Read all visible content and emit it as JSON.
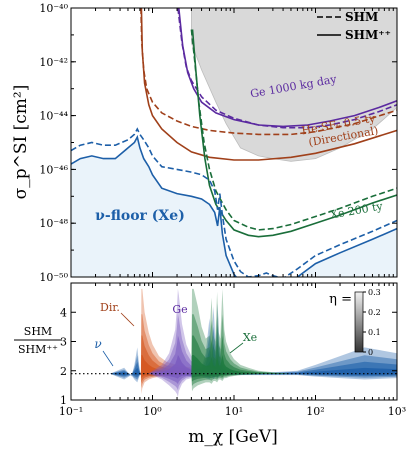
{
  "chart_data": [
    {
      "type": "line",
      "panel": "top",
      "x_label": "",
      "y_label": "σ_p^SI [cm²]",
      "x_scale": "log",
      "y_scale": "log",
      "xlim": [
        0.1,
        1000
      ],
      "ylim": [
        1e-50,
        1e-40
      ],
      "y_ticks": [
        {
          "exp": -50,
          "label": "10⁻⁵⁰"
        },
        {
          "exp": -48,
          "label": "10⁻⁴⁸"
        },
        {
          "exp": -46,
          "label": "10⁻⁴⁶"
        },
        {
          "exp": -44,
          "label": "10⁻⁴⁴"
        },
        {
          "exp": -42,
          "label": "10⁻⁴²"
        },
        {
          "exp": -40,
          "label": "10⁻⁴⁰"
        }
      ],
      "legend": [
        {
          "label": "SHM",
          "style": "dashed"
        },
        {
          "label": "SHM⁺⁺",
          "style": "solid"
        }
      ],
      "legend_position": "top-right",
      "excluded_region": {
        "color": "#d9d9d9",
        "x": [
          3.0,
          3.0,
          4.0,
          6.0,
          8.0,
          12.0,
          20.0,
          30.0,
          50.0,
          100.0,
          200.0,
          500.0,
          1000.0,
          1000.0
        ],
        "log_y": [
          -40,
          -41.3,
          -42.3,
          -43.5,
          -44.3,
          -45.2,
          -45.5,
          -45.6,
          -45.7,
          -45.6,
          -45.2,
          -44.5,
          -43.7,
          -40
        ]
      },
      "series": [
        {
          "key": "ge",
          "name": "Ge 1000 kg day",
          "color": "#5b2aa0",
          "shm_x": [
            2.05,
            2.3,
            2.6,
            3.0,
            4.0,
            6.0,
            10.0,
            20.0,
            40.0,
            80.0,
            150.0,
            300.0,
            600.0,
            1000.0
          ],
          "shm_log_y": [
            -40,
            -41.3,
            -42.2,
            -42.7,
            -43.3,
            -43.8,
            -44.1,
            -44.35,
            -44.45,
            -44.45,
            -44.35,
            -44.15,
            -43.85,
            -43.6
          ],
          "pp_x": [
            2.1,
            2.35,
            2.7,
            3.2,
            4.0,
            6.0,
            10.0,
            20.0,
            40.0,
            80.0,
            150.0,
            300.0,
            600.0,
            1000.0
          ],
          "pp_log_y": [
            -40,
            -41.4,
            -42.4,
            -43.0,
            -43.5,
            -43.9,
            -44.15,
            -44.35,
            -44.4,
            -44.35,
            -44.2,
            -44.0,
            -43.7,
            -43.45
          ]
        },
        {
          "key": "he",
          "name": "He:SF₆ 0.5 ty",
          "name_sub": "(Directional)",
          "color": "#a0401a",
          "shm_x": [
            0.72,
            0.74,
            0.78,
            0.85,
            1.0,
            1.3,
            2.0,
            3.0,
            5.0,
            10.0,
            20.0,
            50.0,
            100.0,
            300.0,
            1000.0
          ],
          "shm_log_y": [
            -40,
            -41.3,
            -42.3,
            -43.0,
            -43.5,
            -43.9,
            -44.2,
            -44.4,
            -44.55,
            -44.65,
            -44.7,
            -44.7,
            -44.6,
            -44.3,
            -43.8
          ],
          "pp_x": [
            0.73,
            0.75,
            0.8,
            0.9,
            1.0,
            1.3,
            2.0,
            3.0,
            5.0,
            10.0,
            20.0,
            50.0,
            100.0,
            300.0,
            1000.0
          ],
          "pp_log_y": [
            -40,
            -41.6,
            -42.8,
            -43.6,
            -44.0,
            -44.5,
            -45.0,
            -45.35,
            -45.55,
            -45.65,
            -45.65,
            -45.55,
            -45.4,
            -45.05,
            -44.55
          ]
        },
        {
          "key": "xe",
          "name": "Xe 200 ty",
          "color": "#1a6e3a",
          "shm_x": [
            3.0,
            3.3,
            3.7,
            4.3,
            5.0,
            6.0,
            8.0,
            10.0,
            15.0,
            20.0,
            30.0,
            50.0,
            100.0,
            200.0,
            500.0,
            1000.0
          ],
          "shm_log_y": [
            -40.8,
            -42.0,
            -43.5,
            -45.0,
            -46.0,
            -46.8,
            -47.5,
            -47.9,
            -48.15,
            -48.25,
            -48.2,
            -48.05,
            -47.75,
            -47.45,
            -47.0,
            -46.7
          ],
          "pp_x": [
            3.1,
            3.4,
            3.8,
            4.4,
            5.0,
            6.0,
            8.0,
            10.0,
            15.0,
            20.0,
            30.0,
            50.0,
            100.0,
            200.0,
            500.0,
            1000.0
          ],
          "pp_log_y": [
            -40.8,
            -42.3,
            -44.0,
            -45.6,
            -46.6,
            -47.3,
            -47.9,
            -48.25,
            -48.45,
            -48.5,
            -48.45,
            -48.3,
            -48.0,
            -47.7,
            -47.25,
            -46.95
          ]
        },
        {
          "key": "nu",
          "name": "ν-floor (Xe)",
          "color": "#1d5fa8",
          "fill": "#eaf3fa",
          "shm_x": [
            0.1,
            0.13,
            0.18,
            0.25,
            0.35,
            0.5,
            0.6,
            0.65,
            0.7,
            0.78,
            0.9,
            1.0,
            1.3,
            2.0,
            3.0,
            4.0,
            5.0,
            5.8,
            6.3,
            6.7,
            7.2,
            8.0,
            10.0,
            12.0,
            15.0,
            20.0,
            25.0,
            30.0,
            40.0,
            60.0,
            100.0,
            200.0,
            500.0,
            1000.0
          ],
          "shm_log_y": [
            -45.3,
            -45.1,
            -45.0,
            -45.1,
            -45.1,
            -44.9,
            -44.7,
            -44.5,
            -44.7,
            -44.9,
            -45.2,
            -45.5,
            -45.9,
            -46.0,
            -46.1,
            -46.2,
            -46.4,
            -46.8,
            -47.5,
            -46.9,
            -47.7,
            -48.6,
            -49.4,
            -49.8,
            -50.0,
            -49.95,
            -49.85,
            -49.95,
            -50.05,
            -49.7,
            -49.2,
            -48.8,
            -48.3,
            -47.9
          ],
          "pp_x": [
            0.1,
            0.13,
            0.18,
            0.25,
            0.35,
            0.5,
            0.6,
            0.65,
            0.7,
            0.78,
            0.9,
            1.0,
            1.3,
            2.0,
            3.0,
            4.0,
            5.0,
            5.8,
            6.3,
            6.7,
            7.2,
            8.0,
            10.0,
            12.0,
            15.0,
            20.0,
            25.0,
            30.0,
            40.0,
            60.0,
            100.0,
            200.0,
            500.0,
            1000.0
          ],
          "pp_log_y": [
            -45.8,
            -45.6,
            -45.5,
            -45.6,
            -45.6,
            -45.2,
            -45.0,
            -44.8,
            -45.2,
            -45.6,
            -45.9,
            -46.2,
            -46.7,
            -46.9,
            -47.0,
            -47.1,
            -47.3,
            -47.6,
            -48.1,
            -47.4,
            -48.4,
            -49.2,
            -49.9,
            -50.2,
            -50.3,
            -50.2,
            -50.05,
            -50.15,
            -50.25,
            -50.0,
            -49.5,
            -49.1,
            -48.6,
            -48.2
          ]
        }
      ],
      "region_label": "ν-floor (Xe)"
    },
    {
      "type": "area",
      "panel": "bottom",
      "x_label": "m_χ [GeV]",
      "y_label": "SHM / SHM⁺⁺",
      "x_scale": "log",
      "xlim": [
        0.1,
        1000
      ],
      "ylim": [
        1,
        5
      ],
      "x_ticks": [
        {
          "value": 0.1,
          "label": "10⁻¹"
        },
        {
          "value": 1,
          "label": "10⁰"
        },
        {
          "value": 10,
          "label": "10¹"
        },
        {
          "value": 100,
          "label": "10²"
        },
        {
          "value": 1000,
          "label": "10³"
        }
      ],
      "y_ticks": [
        1,
        2,
        3,
        4
      ],
      "reference_line": {
        "y": 1.9,
        "style": "dotted"
      },
      "bands": [
        {
          "key": "nu",
          "label": "ν",
          "color": "#1d5fa8",
          "x": [
            0.1,
            0.3,
            0.45,
            0.55,
            0.6,
            0.65,
            0.68,
            0.7,
            0.72,
            0.8,
            1.0,
            1.5,
            2.0,
            3.0,
            4.0,
            4.5,
            5.0,
            5.3,
            5.6,
            6.0,
            6.3,
            6.6,
            7.0,
            7.5,
            8.0,
            10.0,
            15.0,
            30.0,
            60.0,
            100.0,
            200.0,
            400.0,
            1000.0
          ],
          "y_hi": [
            1.9,
            1.9,
            2.1,
            1.8,
            2.2,
            2.8,
            2.3,
            2.0,
            1.9,
            1.95,
            2.0,
            1.95,
            1.9,
            2.0,
            2.1,
            2.6,
            3.8,
            2.8,
            4.2,
            2.8,
            4.3,
            3.0,
            2.4,
            2.2,
            2.1,
            2.0,
            1.95,
            1.95,
            2.0,
            2.2,
            2.5,
            2.8,
            2.6
          ],
          "y_lo": [
            1.9,
            1.9,
            1.7,
            1.85,
            1.7,
            1.6,
            1.75,
            1.85,
            1.85,
            1.85,
            1.8,
            1.85,
            1.85,
            1.8,
            1.8,
            1.75,
            1.7,
            1.8,
            1.7,
            1.8,
            1.75,
            1.8,
            1.85,
            1.85,
            1.85,
            1.85,
            1.85,
            1.85,
            1.85,
            1.8,
            1.75,
            1.7,
            1.75
          ]
        },
        {
          "key": "he",
          "label": "Dir.",
          "color": "#d4561e",
          "x": [
            0.72,
            0.73,
            0.75,
            0.8,
            0.9,
            1.0,
            1.2,
            1.5,
            2.0,
            3.0,
            4.0,
            5.0,
            6.0,
            8.0
          ],
          "y_hi": [
            1.9,
            4.8,
            4.8,
            4.0,
            3.3,
            2.9,
            2.5,
            2.3,
            2.2,
            2.1,
            2.05,
            2.0,
            1.95,
            1.9
          ],
          "y_lo": [
            1.9,
            1.2,
            1.4,
            1.6,
            1.7,
            1.75,
            1.8,
            1.8,
            1.85,
            1.85,
            1.85,
            1.85,
            1.88,
            1.9
          ]
        },
        {
          "key": "ge",
          "label": "Ge",
          "color": "#7a5bbf",
          "x": [
            0.9,
            1.0,
            1.3,
            1.6,
            1.9,
            2.0,
            2.05,
            2.1,
            2.3,
            2.6,
            3.0,
            4.0,
            6.0,
            10.0
          ],
          "y_hi": [
            1.9,
            2.0,
            2.2,
            2.6,
            3.4,
            4.2,
            4.8,
            4.6,
            3.6,
            2.9,
            2.5,
            2.2,
            2.05,
            1.95
          ],
          "y_lo": [
            1.9,
            1.85,
            1.7,
            1.5,
            1.3,
            1.2,
            1.1,
            1.3,
            1.55,
            1.7,
            1.75,
            1.8,
            1.85,
            1.88
          ]
        },
        {
          "key": "xe",
          "label": "Xe",
          "color": "#1f7a3f",
          "x": [
            3.0,
            3.05,
            3.2,
            3.6,
            4.0,
            4.5,
            5.0,
            5.3,
            5.6,
            5.9,
            6.2,
            6.5,
            6.8,
            7.2,
            7.6,
            8.0,
            8.5,
            9.0,
            10.0,
            12.0,
            15.0,
            20.0,
            30.0,
            50.0
          ],
          "y_hi": [
            1.9,
            4.8,
            4.8,
            4.2,
            3.5,
            3.1,
            3.2,
            4.5,
            3.2,
            3.0,
            4.7,
            3.3,
            3.1,
            4.8,
            3.4,
            3.0,
            2.8,
            2.6,
            2.4,
            2.2,
            2.1,
            2.0,
            1.95,
            1.9
          ],
          "y_lo": [
            1.9,
            1.3,
            1.4,
            1.5,
            1.55,
            1.6,
            1.6,
            1.55,
            1.65,
            1.65,
            1.6,
            1.7,
            1.7,
            1.65,
            1.75,
            1.75,
            1.78,
            1.8,
            1.82,
            1.85,
            1.86,
            1.88,
            1.89,
            1.9
          ]
        }
      ],
      "colorbar": {
        "label": "η =",
        "ticks": [
          0,
          0.1,
          0.2,
          0.3
        ],
        "range": [
          0,
          0.3
        ]
      }
    }
  ]
}
